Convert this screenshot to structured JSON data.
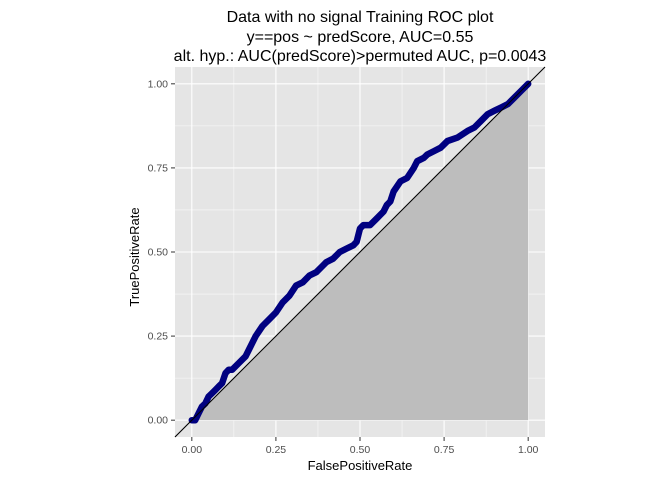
{
  "chart_data": {
    "type": "line",
    "title": [
      "Data with no signal Training ROC plot",
      "y==pos ~ predScore, AUC=0.55",
      "alt. hyp.: AUC(predScore)>permuted AUC, p=0.0043"
    ],
    "xlabel": "FalsePositiveRate",
    "ylabel": "TruePositiveRate",
    "xlim": [
      -0.05,
      1.05
    ],
    "ylim": [
      -0.05,
      1.05
    ],
    "xticks": [
      0.0,
      0.25,
      0.5,
      0.75,
      1.0
    ],
    "xtick_labels": [
      "0.00",
      "0.25",
      "0.50",
      "0.75",
      "1.00"
    ],
    "yticks": [
      0.0,
      0.25,
      0.5,
      0.75,
      1.0
    ],
    "ytick_labels": [
      "0.00",
      "0.25",
      "0.50",
      "0.75",
      "1.00"
    ],
    "grid": true,
    "reference_line": {
      "x": [
        -0.05,
        1.05
      ],
      "y": [
        -0.05,
        1.05
      ]
    },
    "shaded_area": {
      "x": [
        0,
        1,
        1
      ],
      "y": [
        0,
        0,
        1
      ]
    },
    "series": [
      {
        "x": [
          0.0,
          0.01,
          0.02,
          0.03,
          0.04,
          0.05,
          0.06,
          0.07,
          0.08,
          0.09,
          0.1,
          0.11,
          0.12,
          0.14,
          0.16,
          0.17,
          0.19,
          0.21,
          0.23,
          0.25,
          0.27,
          0.29,
          0.31,
          0.33,
          0.35,
          0.37,
          0.39,
          0.4,
          0.42,
          0.44,
          0.46,
          0.48,
          0.49,
          0.5,
          0.51,
          0.52,
          0.53,
          0.55,
          0.57,
          0.58,
          0.59,
          0.6,
          0.62,
          0.64,
          0.66,
          0.67,
          0.69,
          0.7,
          0.72,
          0.74,
          0.76,
          0.79,
          0.82,
          0.84,
          0.86,
          0.88,
          0.9,
          0.92,
          0.94,
          0.96,
          0.98,
          1.0
        ],
        "y": [
          0.0,
          0.0,
          0.02,
          0.04,
          0.05,
          0.07,
          0.08,
          0.09,
          0.1,
          0.11,
          0.14,
          0.15,
          0.15,
          0.17,
          0.19,
          0.21,
          0.25,
          0.28,
          0.3,
          0.32,
          0.35,
          0.37,
          0.4,
          0.41,
          0.43,
          0.44,
          0.46,
          0.47,
          0.48,
          0.5,
          0.51,
          0.52,
          0.53,
          0.57,
          0.58,
          0.58,
          0.58,
          0.6,
          0.62,
          0.64,
          0.65,
          0.68,
          0.71,
          0.72,
          0.75,
          0.77,
          0.78,
          0.79,
          0.8,
          0.81,
          0.83,
          0.84,
          0.86,
          0.87,
          0.89,
          0.91,
          0.92,
          0.93,
          0.94,
          0.96,
          0.98,
          1.0
        ],
        "color": "#000080"
      }
    ],
    "colors": {
      "panel": "#e5e5e5",
      "gridline_major": "#ffffff",
      "area_fill": "#bdbdbd",
      "curve": "#000080",
      "reference": "#000000",
      "tick_text": "#4d4d4d"
    }
  }
}
